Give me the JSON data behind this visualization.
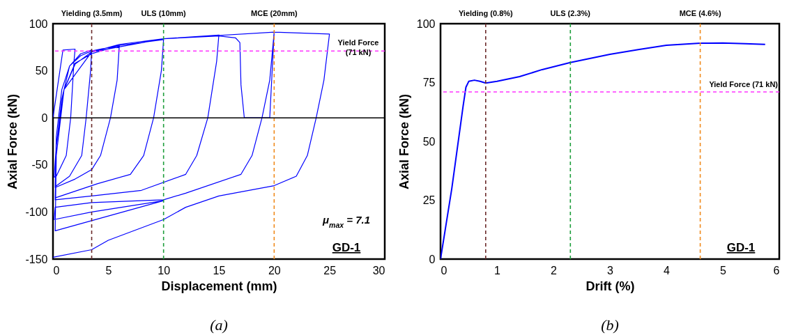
{
  "chart_data": [
    {
      "type": "line",
      "xlabel": "Displacement (mm)",
      "ylabel": "Axial Force (kN)",
      "xlim": [
        0,
        30
      ],
      "ylim": [
        -150,
        100
      ],
      "xticks": [
        0,
        5,
        10,
        15,
        20,
        25,
        30
      ],
      "yticks": [
        -150,
        -100,
        -50,
        0,
        50,
        100
      ],
      "series": [
        {
          "color": "#0000ff",
          "x": [
            0,
            0.9,
            2,
            1.9,
            1.6,
            1.2,
            0.3,
            0.1,
            0.3,
            0.8,
            1.5,
            2.5,
            3.5,
            3.4,
            3.0,
            2.6,
            1.5,
            0.2,
            0.3,
            0.8,
            1.5,
            2.5,
            3.5,
            6,
            5.8,
            5.2,
            4.3,
            3.5,
            2,
            0.2,
            0.3,
            1,
            2,
            3.5,
            6,
            10,
            9.8,
            9.1,
            8.2,
            7,
            4,
            0.2,
            0.3,
            1,
            2,
            3.5,
            6,
            10,
            15,
            14.8,
            14,
            13,
            12,
            8,
            3.5,
            0.2,
            0.3,
            1,
            3.5,
            10,
            15,
            16.5,
            16.9,
            17,
            17.3,
            19.6,
            20,
            19.6,
            18.9,
            18,
            17,
            12,
            10,
            3.5,
            0.2,
            0.1,
            3.5,
            10,
            0.2,
            0.3,
            1,
            3.5,
            10,
            20,
            25,
            24.5,
            23.8,
            23,
            22,
            20,
            15,
            12,
            10,
            5,
            3.5,
            0
          ],
          "values": [
            0,
            72,
            73,
            60,
            0,
            -40,
            -62,
            -63,
            -30,
            20,
            55,
            68,
            72,
            50,
            0,
            -40,
            -62,
            -73,
            -20,
            30,
            55,
            66,
            71,
            77,
            40,
            0,
            -40,
            -55,
            -65,
            -74,
            -30,
            30,
            58,
            68,
            77,
            83,
            50,
            0,
            -40,
            -60,
            -70,
            -85,
            -40,
            30,
            57,
            70,
            78,
            84,
            88,
            60,
            0,
            -40,
            -60,
            -77,
            -83,
            -87,
            -40,
            30,
            70,
            84,
            87,
            85,
            80,
            35,
            0,
            0,
            91,
            40,
            0,
            -40,
            -60,
            -80,
            -87,
            -90,
            -95,
            -108,
            -100,
            -88,
            -120,
            -40,
            30,
            70,
            84,
            91,
            89,
            40,
            0,
            -40,
            -62,
            -72,
            -83,
            -95,
            -108,
            -130,
            -140,
            -148
          ]
        }
      ],
      "ref_lines": [
        {
          "axis": "x",
          "value": 3.5,
          "label": "Yielding (3.5mm)",
          "color": "#6b2a2a",
          "line_style": "dashed"
        },
        {
          "axis": "x",
          "value": 10,
          "label": "ULS (10mm)",
          "color": "#1e9e3c",
          "line_style": "dashed"
        },
        {
          "axis": "x",
          "value": 20,
          "label": "MCE (20mm)",
          "color": "#f08a1c",
          "line_style": "dashed"
        },
        {
          "axis": "y",
          "value": 71,
          "label": "Yield Force (71 kN)",
          "color": "#ff33ff",
          "line_style": "dashed"
        },
        {
          "axis": "y",
          "value": 0,
          "color": "#000000",
          "line_style": "solid"
        }
      ],
      "annotations": [
        "μ$_{max}$ = 7.1",
        "GD-1",
        "(a)"
      ]
    },
    {
      "type": "line",
      "xlabel": "Drift (%)",
      "ylabel": "Axial Force (kN)",
      "xlim": [
        0,
        6
      ],
      "ylim": [
        0,
        100
      ],
      "xticks": [
        0,
        1,
        2,
        3,
        4,
        5,
        6
      ],
      "yticks": [
        0,
        25,
        50,
        75,
        100
      ],
      "series": [
        {
          "color": "#0000ff",
          "x": [
            0,
            0.2,
            0.4,
            0.45,
            0.5,
            0.6,
            0.7,
            0.8,
            1.0,
            1.4,
            1.8,
            2.3,
            3,
            3.5,
            4,
            4.6,
            5,
            5.4,
            5.75
          ],
          "values": [
            0,
            30,
            65,
            73,
            75.5,
            76,
            75.5,
            74.8,
            75.5,
            77.5,
            80.5,
            83.5,
            87,
            89,
            90.8,
            91.7,
            91.8,
            91.5,
            91.2
          ]
        }
      ],
      "ref_lines": [
        {
          "axis": "x",
          "value": 0.8,
          "label": "Yielding (0.8%)",
          "color": "#6b2a2a",
          "line_style": "dashed"
        },
        {
          "axis": "x",
          "value": 2.3,
          "label": "ULS (2.3%)",
          "color": "#1e9e3c",
          "line_style": "dashed"
        },
        {
          "axis": "x",
          "value": 4.6,
          "label": "MCE (4.6%)",
          "color": "#f08a1c",
          "line_style": "dashed"
        },
        {
          "axis": "y",
          "value": 71,
          "label": "Yield Force (71 kN)",
          "color": "#ff33ff",
          "line_style": "dashed"
        }
      ],
      "annotations": [
        "GD-1",
        "(b)"
      ]
    }
  ]
}
